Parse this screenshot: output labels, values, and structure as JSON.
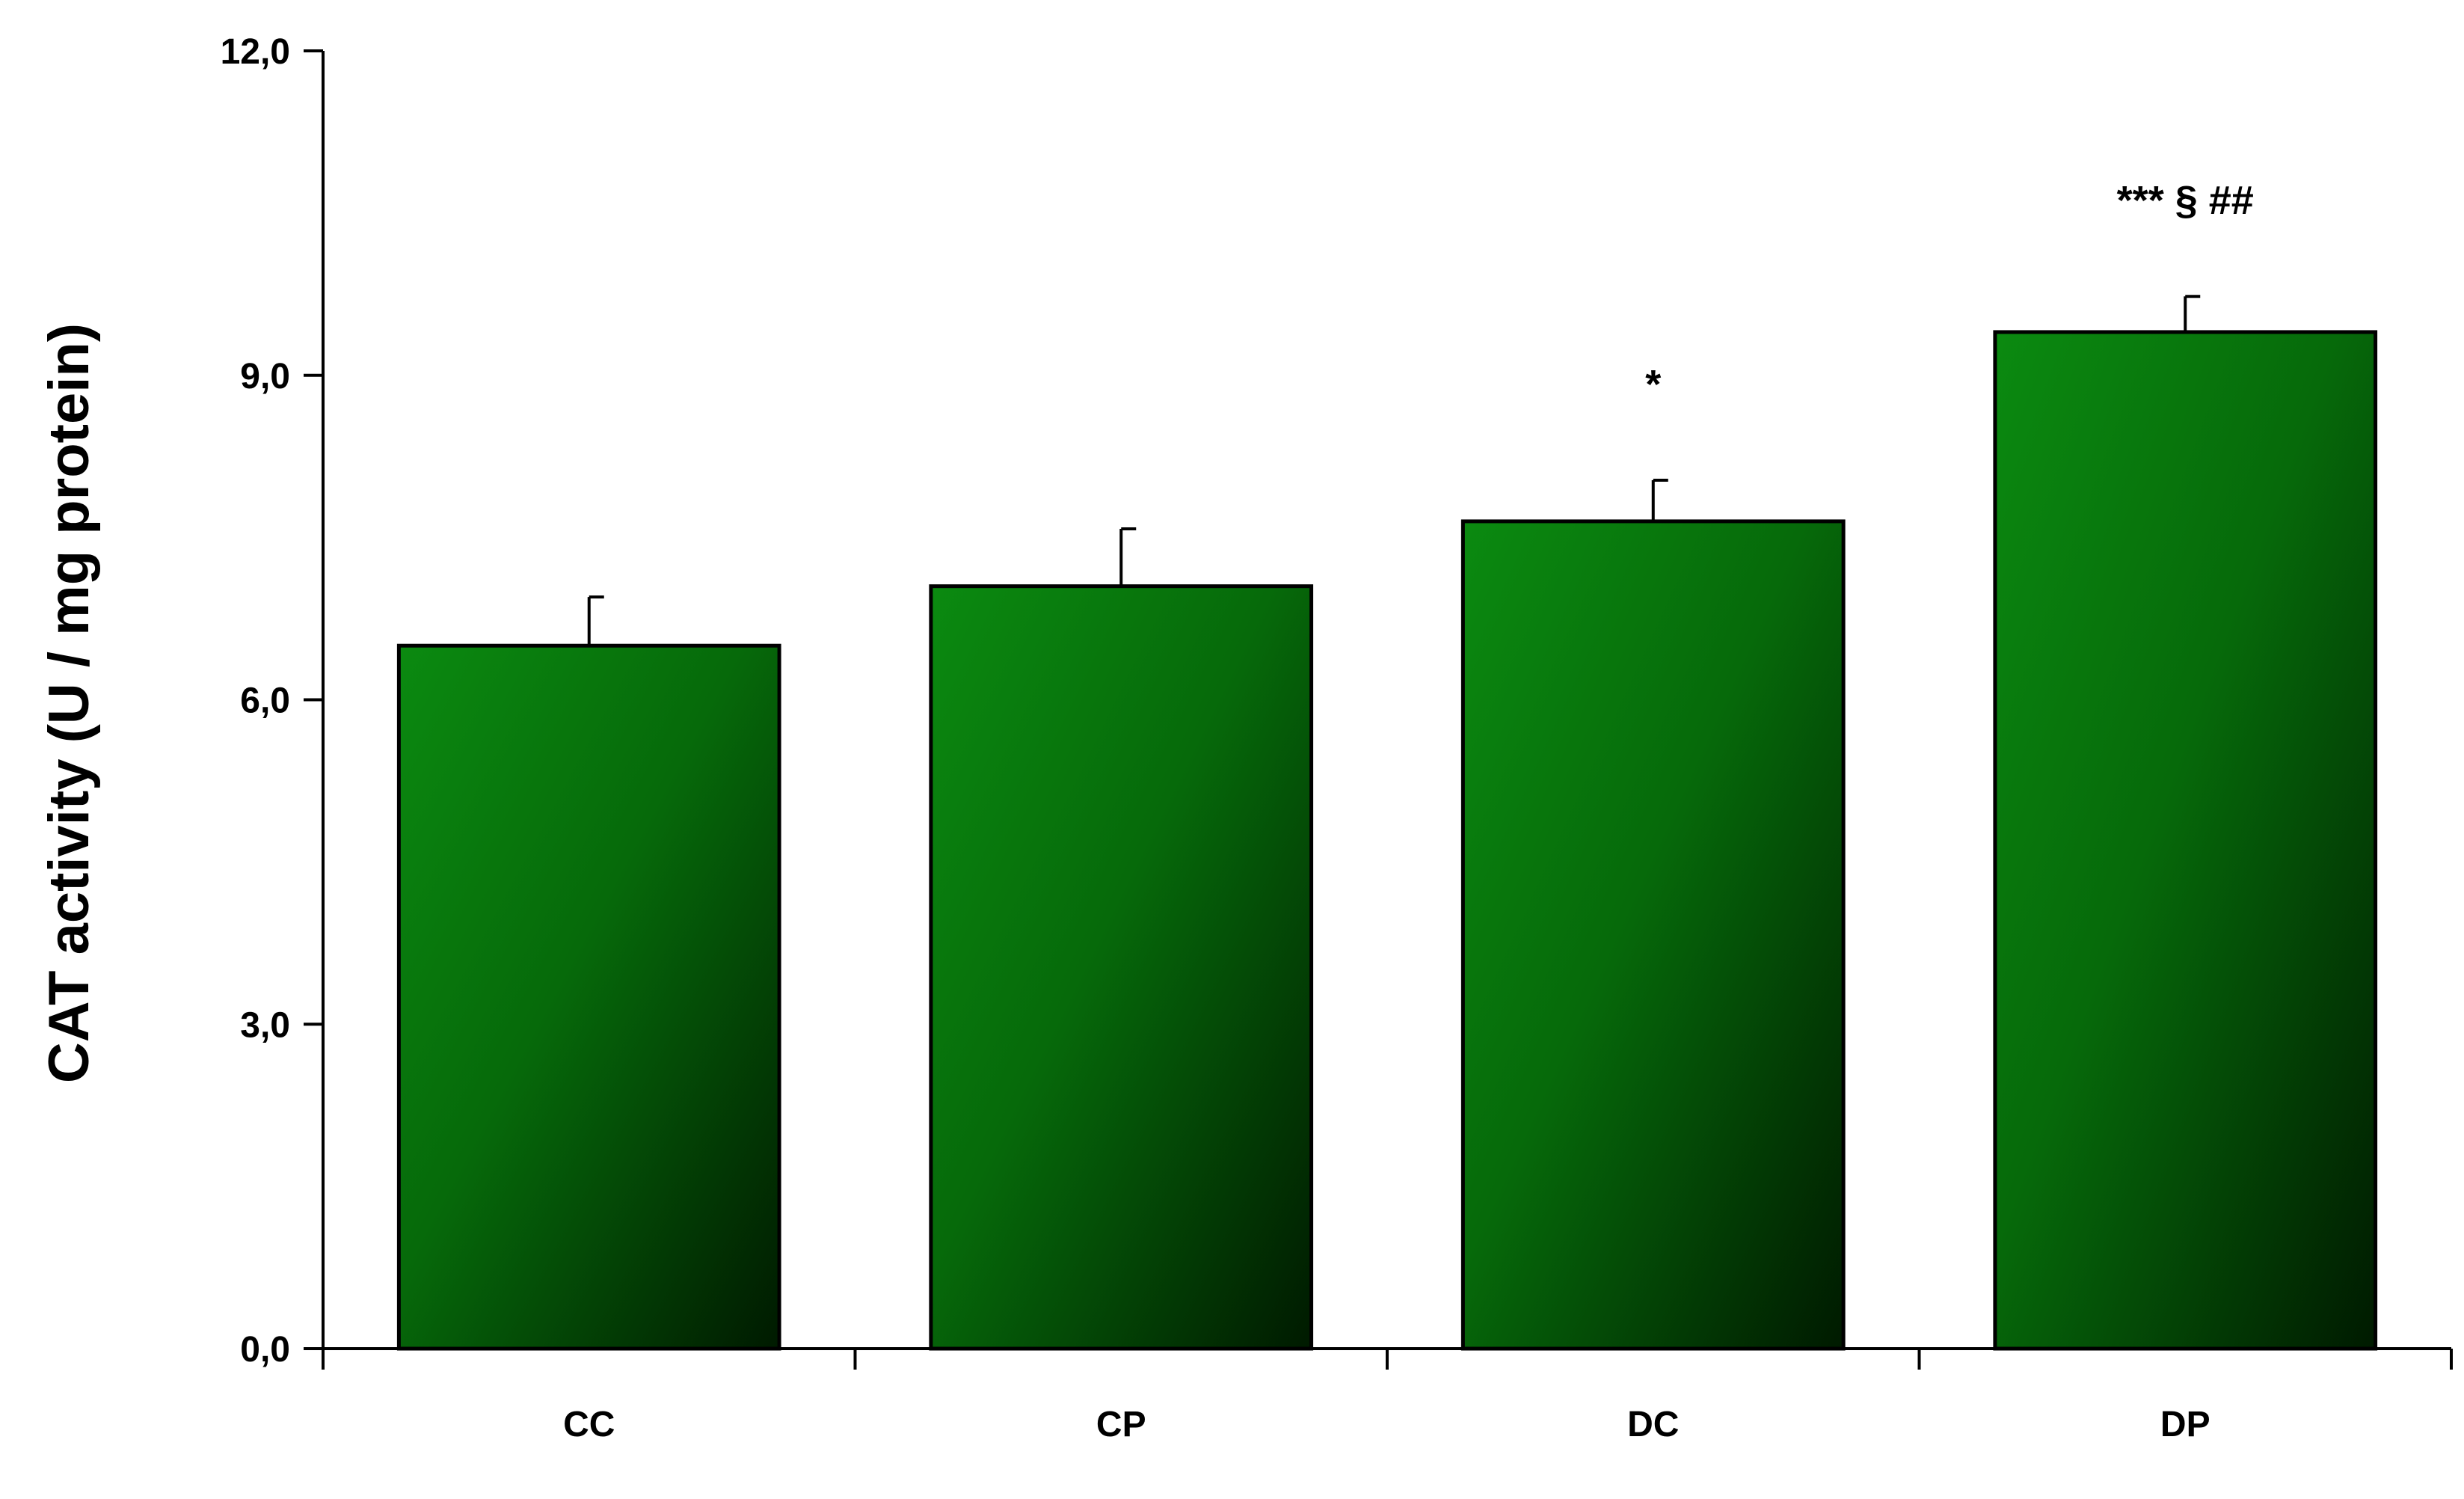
{
  "chart_data": {
    "type": "bar",
    "title": "",
    "xlabel": "",
    "ylabel": "CAT activity (U / mg protein)",
    "categories": [
      "CC",
      "CP",
      "DC",
      "DP"
    ],
    "values": [
      6.5,
      7.05,
      7.65,
      9.4
    ],
    "errors": [
      0.45,
      0.53,
      0.38,
      0.33
    ],
    "annotations": [
      "",
      "",
      "*",
      "*** § ##"
    ],
    "ylim": [
      0,
      12
    ],
    "yticks": [
      0,
      3,
      6,
      9,
      12
    ],
    "ytick_labels": [
      "0,0",
      "3,0",
      "6,0",
      "9,0",
      "12,0"
    ],
    "grid": false,
    "legend": "none",
    "colors": {
      "bar_light": "#0b8a10",
      "bar_dark": "#001a00",
      "bar_border": "#000000",
      "axis": "#000000"
    }
  }
}
